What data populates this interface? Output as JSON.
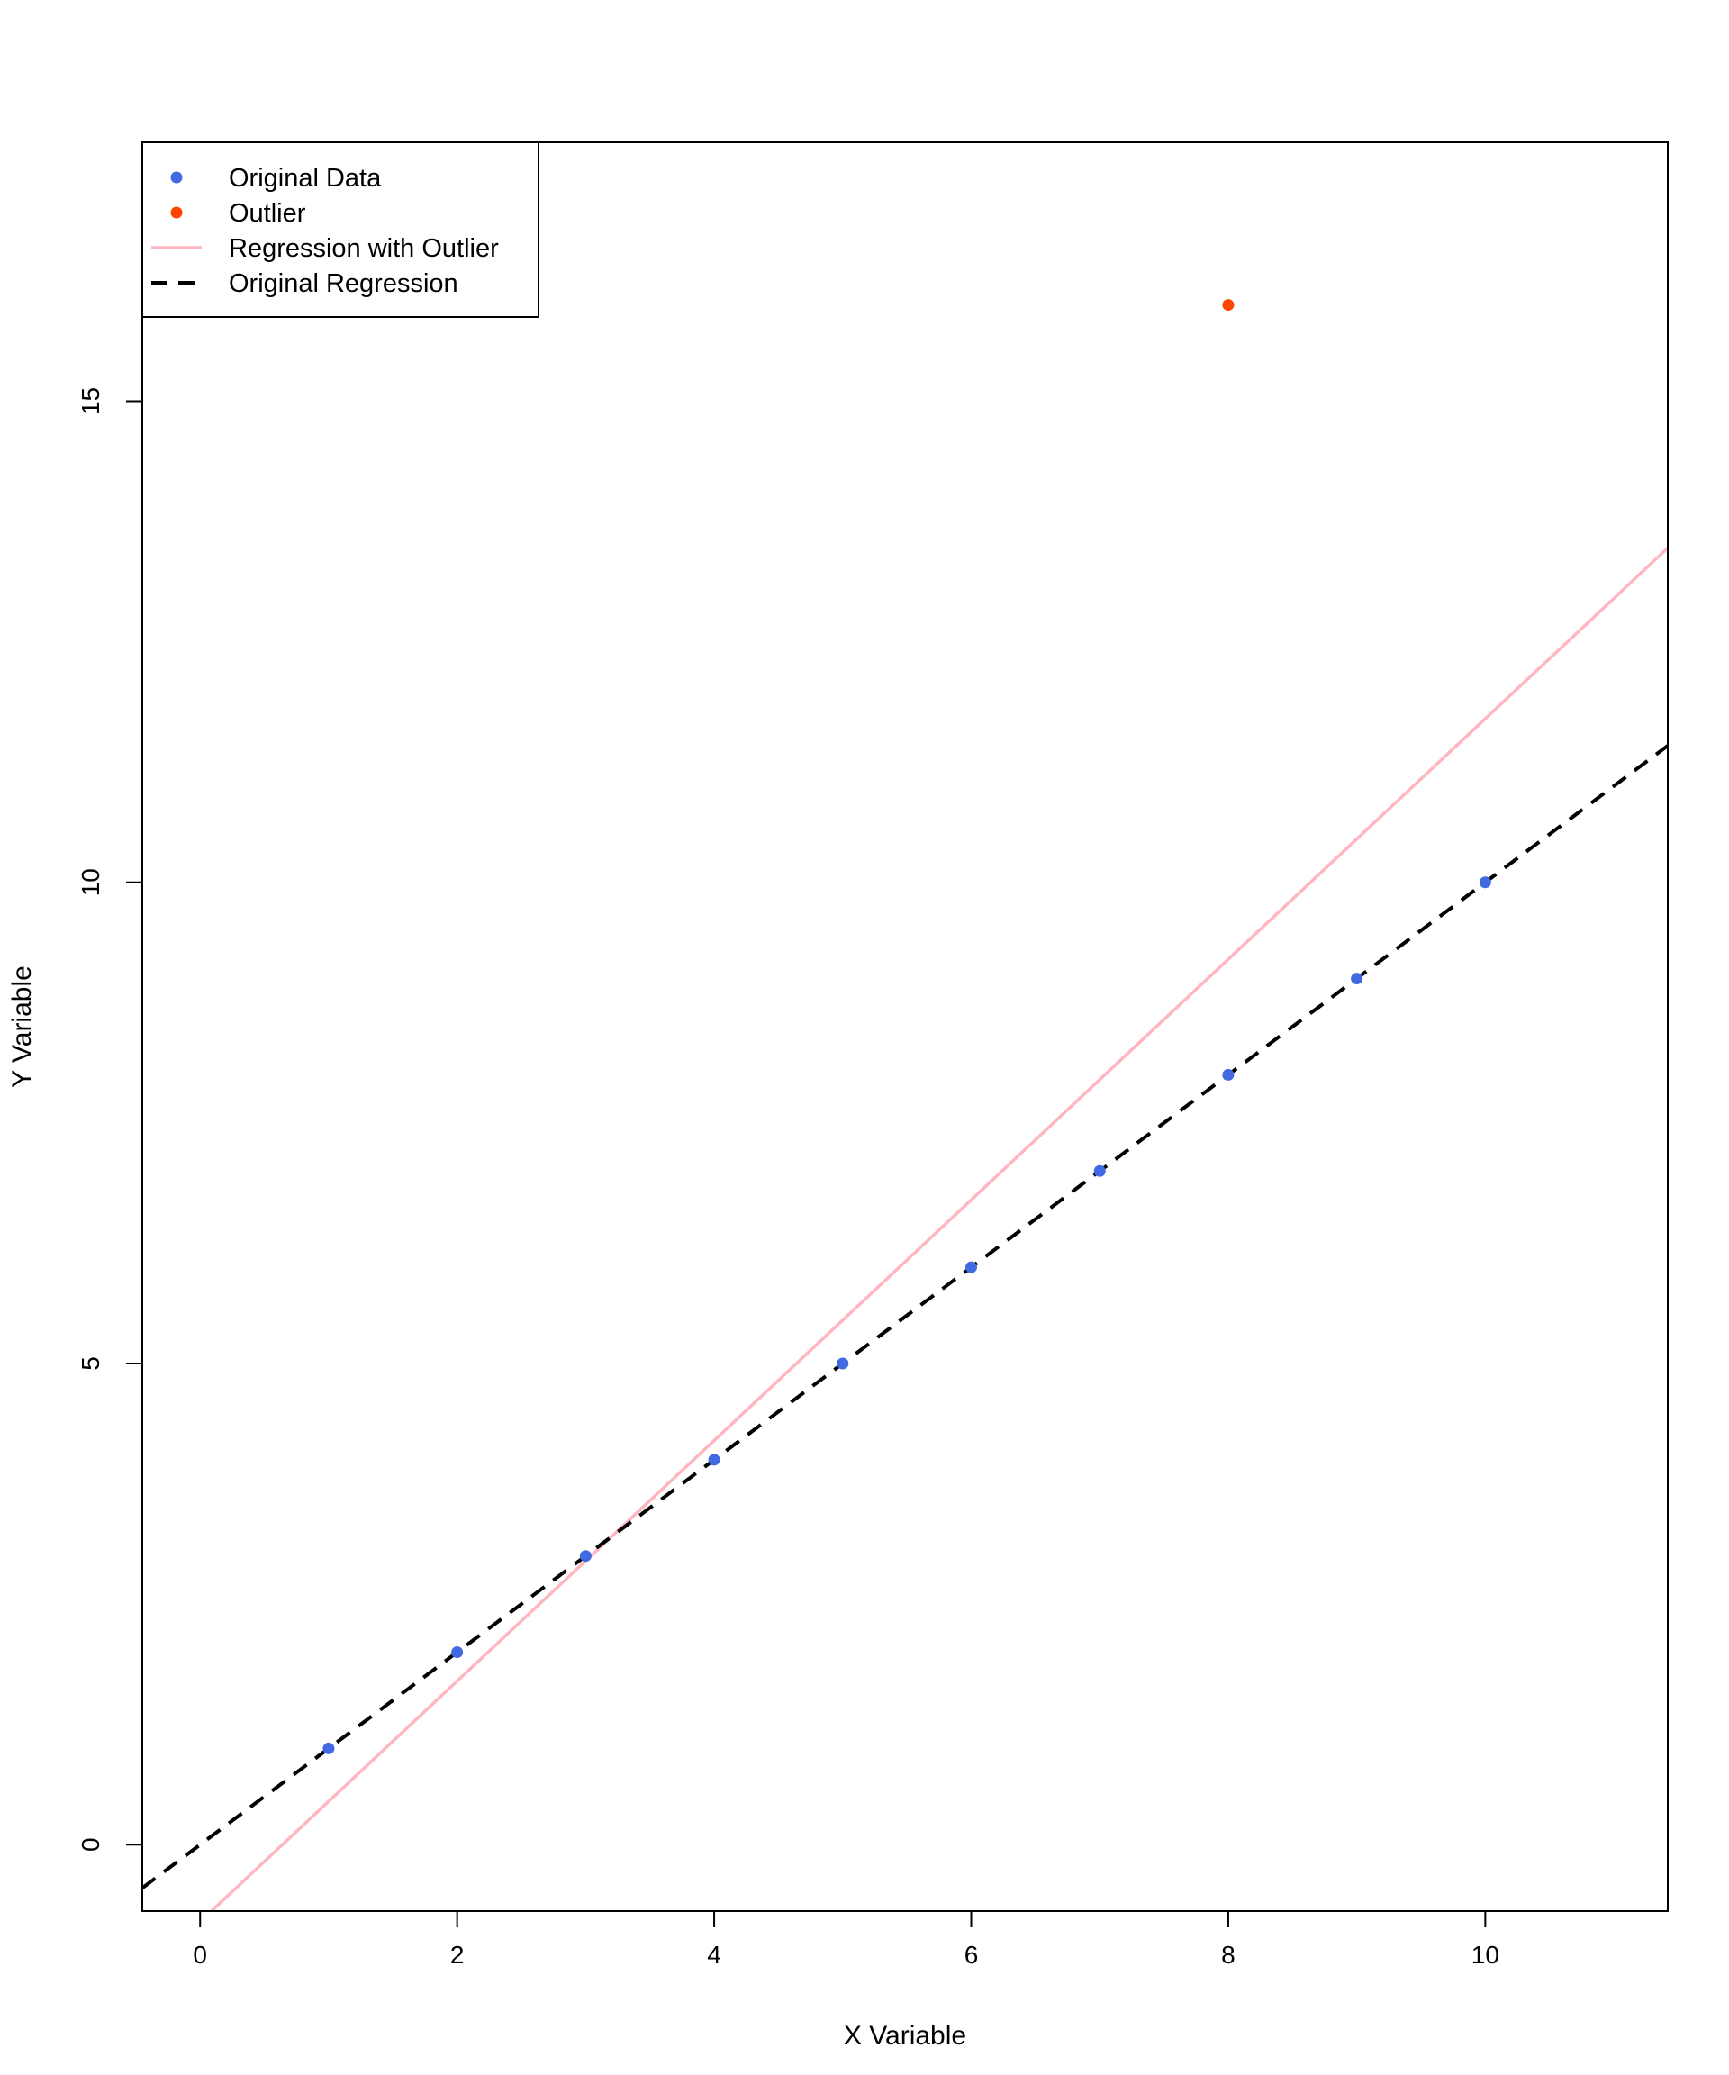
{
  "chart_data": {
    "type": "scatter",
    "xlabel": "X Variable",
    "ylabel": "Y Variable",
    "xlim": [
      -0.45,
      11.42
    ],
    "ylim": [
      -0.69,
      17.69
    ],
    "x_ticks": [
      0,
      2,
      4,
      6,
      8,
      10
    ],
    "y_ticks": [
      0,
      5,
      10,
      15
    ],
    "grid": false,
    "legend_position": "top-left",
    "series": [
      {
        "name": "Original Data",
        "kind": "points",
        "color": "#4169E1",
        "points": [
          {
            "x": 1,
            "y": 1
          },
          {
            "x": 2,
            "y": 2
          },
          {
            "x": 3,
            "y": 3
          },
          {
            "x": 4,
            "y": 4
          },
          {
            "x": 5,
            "y": 5
          },
          {
            "x": 6,
            "y": 6
          },
          {
            "x": 7,
            "y": 7
          },
          {
            "x": 8,
            "y": 8
          },
          {
            "x": 9,
            "y": 9
          },
          {
            "x": 10,
            "y": 10
          }
        ]
      },
      {
        "name": "Outlier",
        "kind": "points",
        "color": "#FF4500",
        "points": [
          {
            "x": 8,
            "y": 16
          }
        ]
      },
      {
        "name": "Regression with Outlier",
        "kind": "line",
        "style": "solid",
        "color": "#FFB6C1",
        "intercept": -0.8,
        "slope": 1.25
      },
      {
        "name": "Original Regression",
        "kind": "line",
        "style": "dashed",
        "color": "#000000",
        "intercept": 0,
        "slope": 1
      }
    ]
  }
}
